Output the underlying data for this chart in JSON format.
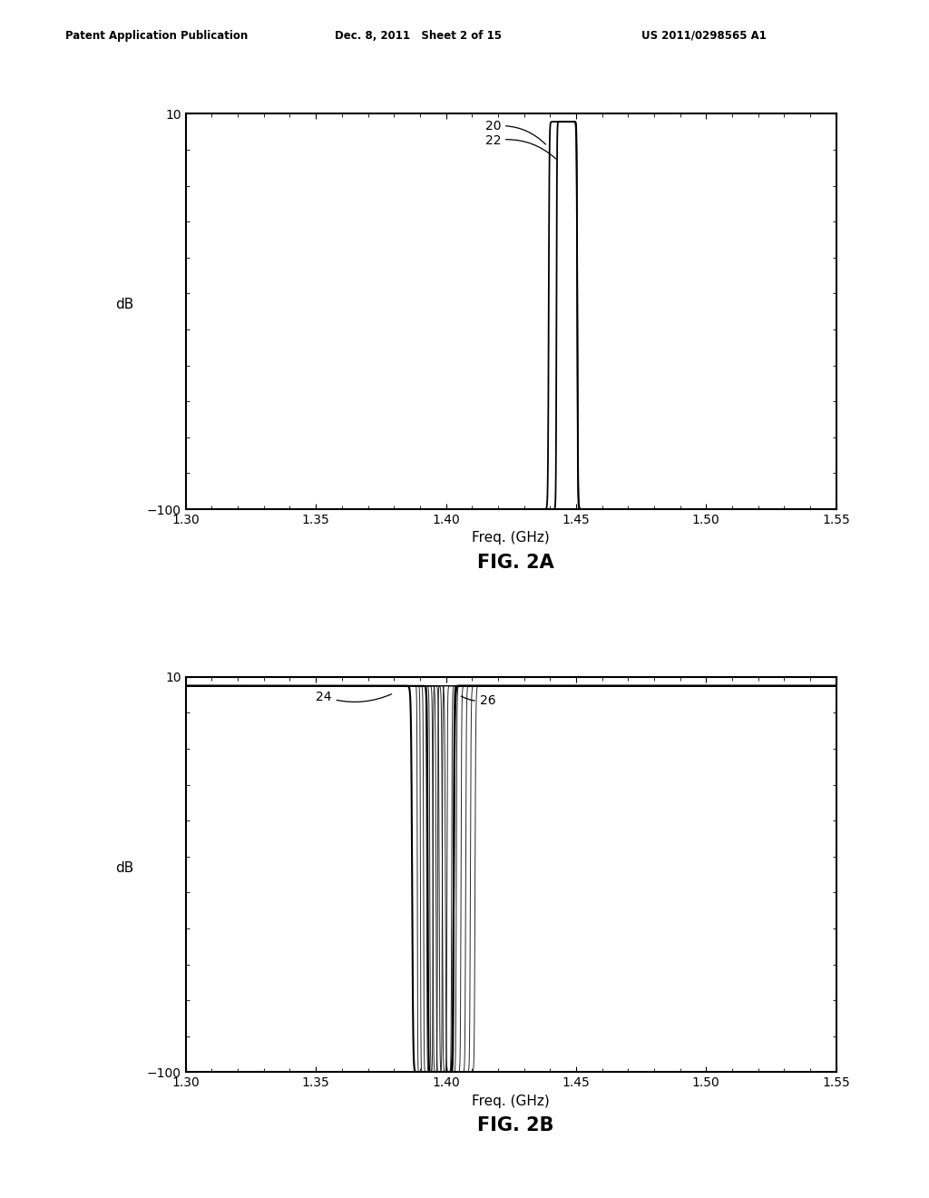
{
  "header_left": "Patent Application Publication",
  "header_center": "Dec. 8, 2011   Sheet 2 of 15",
  "header_right": "US 2011/0298565 A1",
  "fig2a_title": "FIG. 2A",
  "fig2b_title": "FIG. 2B",
  "ylabel": "dB",
  "xlabel": "Freq. (GHz)",
  "xlim": [
    1.3,
    1.55
  ],
  "ylim": [
    -100,
    10
  ],
  "xticks": [
    1.3,
    1.35,
    1.4,
    1.45,
    1.5,
    1.55
  ],
  "yticks": [
    -100,
    10
  ],
  "label_20": "20",
  "label_22": "22",
  "label_24": "24",
  "label_26": "26",
  "peak_freq_2a": 1.445,
  "peak_freq_2b": 1.395,
  "background_color": "#ffffff",
  "line_color": "#000000"
}
